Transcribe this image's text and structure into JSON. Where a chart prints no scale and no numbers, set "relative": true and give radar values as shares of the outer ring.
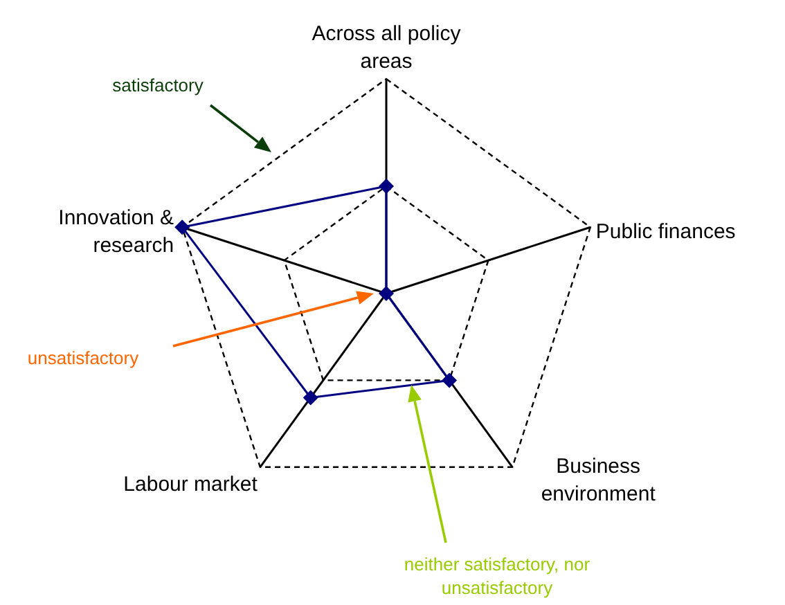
{
  "chart_data": {
    "type": "radar",
    "relative": true,
    "categories": [
      "Across all policy areas",
      "Public finances",
      "Business environment",
      "Labour market",
      "Innovation & research"
    ],
    "series": [
      {
        "color": "#000080",
        "values": [
          0.5,
          0,
          0.5,
          0.6,
          1
        ]
      }
    ],
    "marker": "diamond",
    "grid": true,
    "annotations": [
      "satisfactory",
      "unsatisfactory",
      "neither satisfactory, nor unsatisfactory"
    ]
  }
}
